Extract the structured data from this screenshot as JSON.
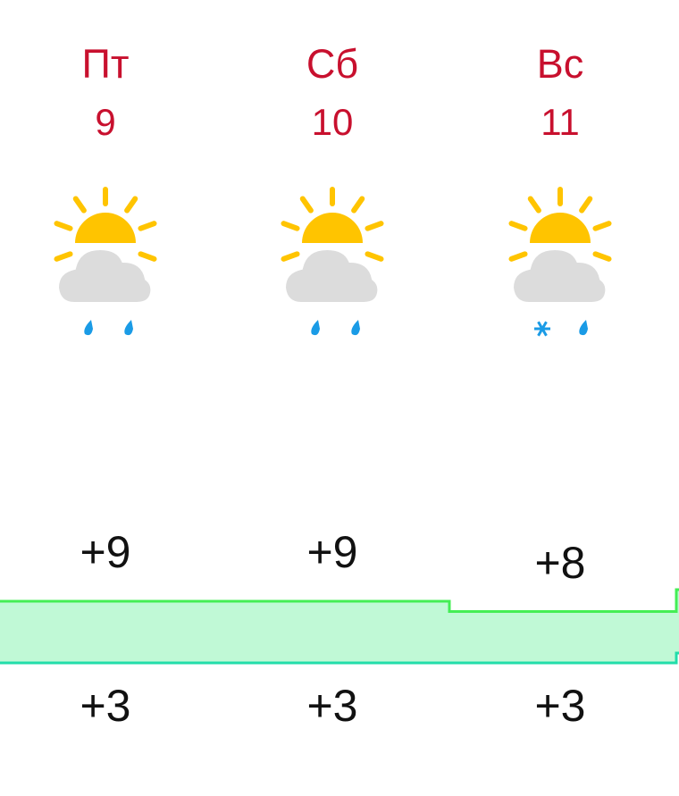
{
  "forecast": {
    "days": [
      {
        "day": "Пт",
        "date": "9",
        "icon": "partly-cloudy-rain-icon",
        "precip": [
          "rain",
          "rain"
        ],
        "high": "+9",
        "low": "+3",
        "high_value": 9,
        "low_value": 3
      },
      {
        "day": "Сб",
        "date": "10",
        "icon": "partly-cloudy-rain-icon",
        "precip": [
          "rain",
          "rain"
        ],
        "high": "+9",
        "low": "+3",
        "high_value": 9,
        "low_value": 3
      },
      {
        "day": "Вс",
        "date": "11",
        "icon": "partly-cloudy-sleet-icon",
        "precip": [
          "snow",
          "rain"
        ],
        "high": "+8",
        "low": "+3",
        "high_value": 8,
        "low_value": 3
      }
    ],
    "colors": {
      "day_label": "#c8102e",
      "band_fill": "#c0f9d6",
      "band_top": "#44ee55",
      "band_bottom": "#22ddaa",
      "sun": "#ffc400",
      "cloud": "#dcdcdc",
      "precip": "#1a9be6"
    }
  }
}
